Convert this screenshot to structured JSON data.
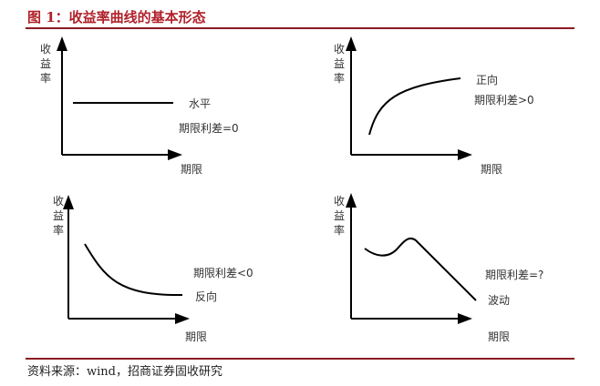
{
  "title": "图 1：收益率曲线的基本形态",
  "source": "资料来源：wind，招商证券固收研究",
  "axis_labels": {
    "y": [
      "收",
      "益",
      "率"
    ],
    "x": "期限"
  },
  "panels": [
    {
      "name": "flat",
      "shape": "水平",
      "spread": "期限利差=0"
    },
    {
      "name": "normal",
      "shape": "正向",
      "spread": "期限利差>0"
    },
    {
      "name": "inverted",
      "shape": "反向",
      "spread": "期限利差<0"
    },
    {
      "name": "humped",
      "shape": "波动",
      "spread": "期限利差=?"
    }
  ]
}
